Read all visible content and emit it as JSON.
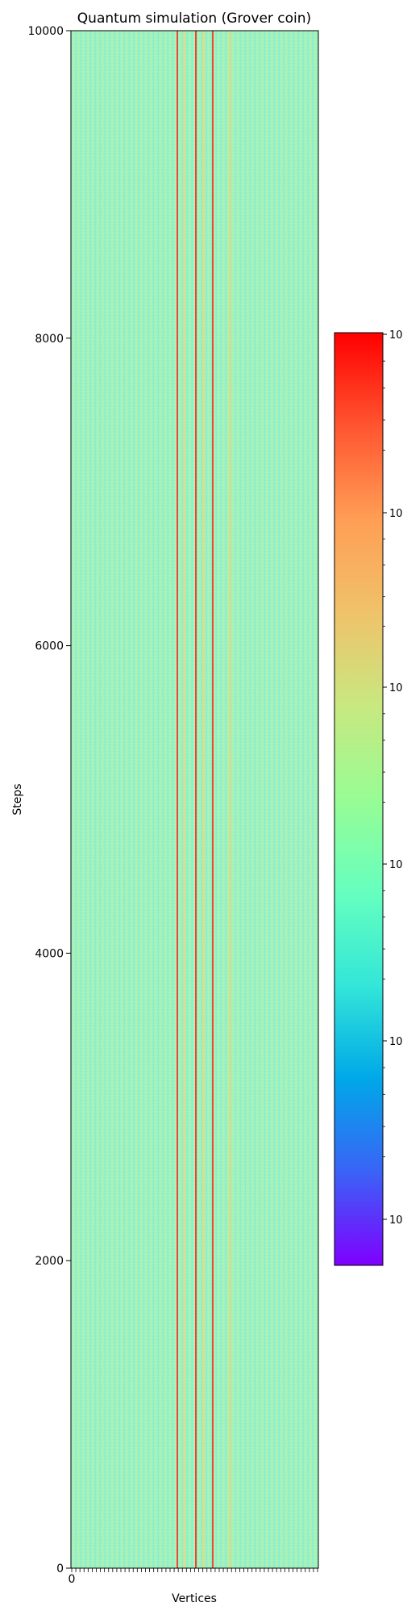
{
  "chart_data": {
    "type": "heatmap",
    "title": "Quantum simulation (Grover coin)",
    "xlabel": "Vertices",
    "ylabel": "Steps",
    "ylim": [
      0,
      10000
    ],
    "y_ticks": [
      0,
      2000,
      4000,
      6000,
      8000,
      10000
    ],
    "y_tick_labels": [
      "0",
      "2000",
      "4000",
      "6000",
      "8000",
      "10000"
    ],
    "x_tick_labels": [
      "0"
    ],
    "colormap": "rainbow",
    "colormap_stops": [
      "#7f00ff",
      "#3a63f6",
      "#00a8e8",
      "#33e6d8",
      "#66ffbf",
      "#98fc94",
      "#c8e880",
      "#f0c26a",
      "#ff9e55",
      "#ff5530",
      "#ff0000"
    ],
    "colorbar_scale": "log",
    "colorbar_tick_labels": [
      "10",
      "10",
      "10",
      "10",
      "10",
      "10",
      "10"
    ],
    "background_color": "#9af2c8",
    "hot_column_colors": [
      "#ff2a1a",
      "#ffd06a"
    ],
    "grid": false
  }
}
